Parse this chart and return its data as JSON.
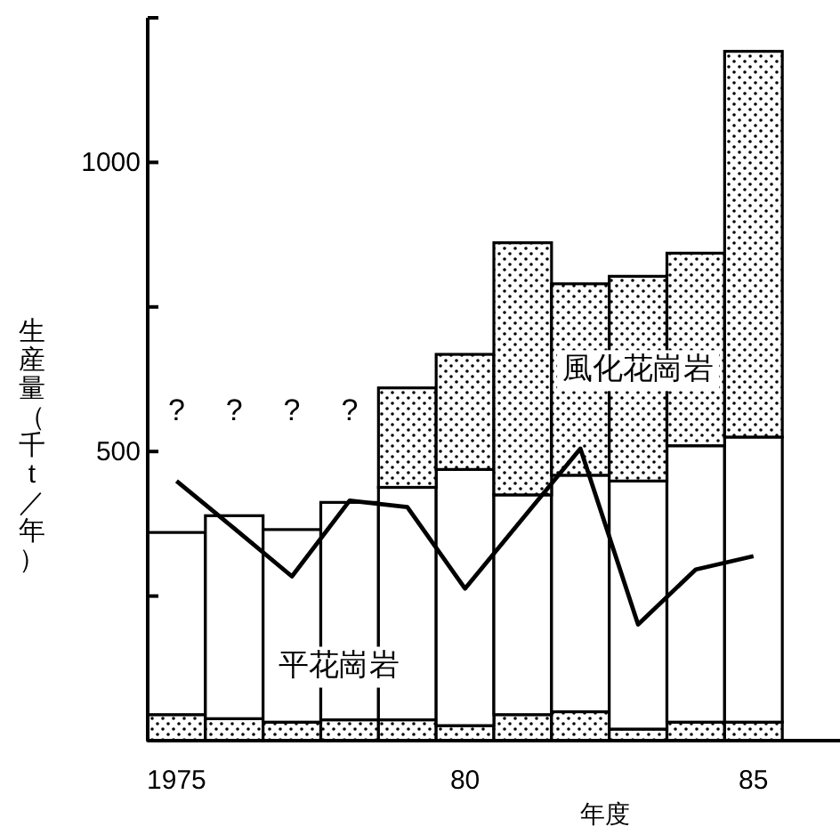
{
  "chart_data": {
    "type": "bar",
    "stacked": true,
    "xlabel": "年度",
    "ylabel": "生産量（千t／年）",
    "x": [
      1975,
      1976,
      1977,
      1978,
      1979,
      1980,
      1981,
      1982,
      1983,
      1984,
      1985
    ],
    "xlim": [
      1974.5,
      1986.5
    ],
    "xticks": [
      {
        "value": 1975,
        "label": "1975"
      },
      {
        "value": 1980,
        "label": "80"
      },
      {
        "value": 1985,
        "label": "85"
      }
    ],
    "ylim": [
      0,
      1250
    ],
    "yticks": [
      {
        "value": 250,
        "label": null
      },
      500,
      {
        "value": 750,
        "label": null
      },
      1000,
      {
        "value": 1250,
        "label": null
      }
    ],
    "grid": false,
    "series": [
      {
        "color": "#000000",
        "values": [
          45,
          38,
          32,
          36,
          36,
          26,
          45,
          50,
          20,
          32,
          32
        ]
      },
      {
        "name": "平花崗岩",
        "color": "#ffffff",
        "values": [
          315,
          351,
          333,
          376,
          402,
          443,
          380,
          409,
          429,
          478,
          493
        ]
      },
      {
        "name": "風化花崗岩",
        "color": "#000000",
        "values": [
          null,
          null,
          null,
          null,
          172,
          199,
          436,
          331,
          354,
          333,
          667
        ]
      },
      {
        "type": "line",
        "color": "#000000",
        "line_style": "solid",
        "marker": "none",
        "values": [
          449,
          367,
          284,
          415,
          404,
          263,
          384,
          505,
          201,
          296,
          319
        ]
      }
    ],
    "annotations": [
      "?",
      "?",
      "?",
      "?"
    ]
  }
}
